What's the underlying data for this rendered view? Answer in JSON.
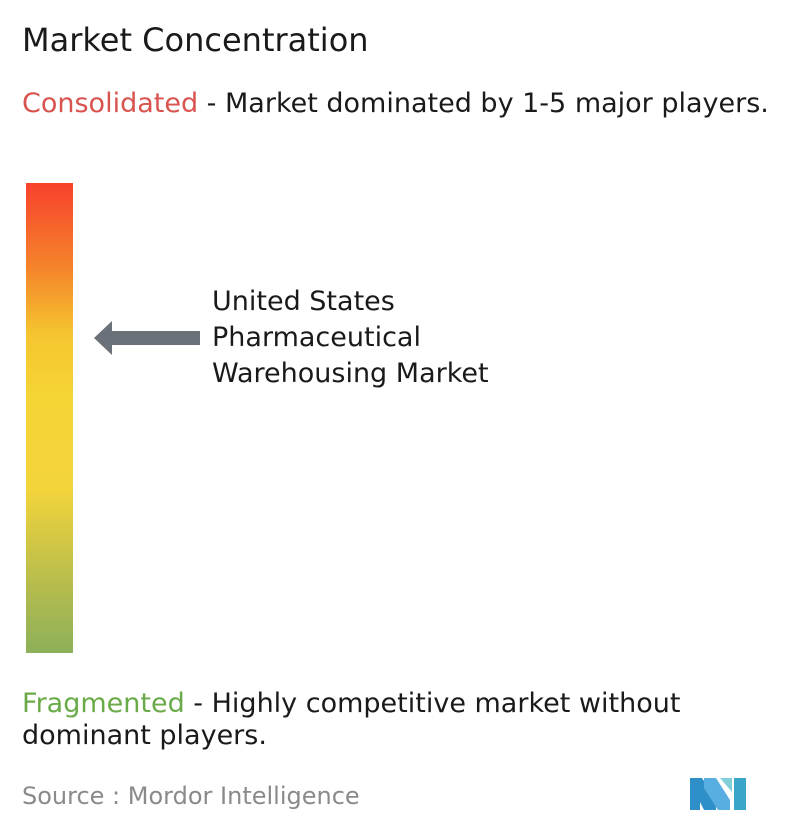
{
  "title": "Market Concentration",
  "top": {
    "keyword": "Consolidated",
    "description": " - Market dominated by 1-5 major players."
  },
  "bottom": {
    "keyword": "Fragmented",
    "description": " - Highly competitive market without dominant players."
  },
  "market_label": [
    "United States",
    "Pharmaceutical",
    "Warehousing Market"
  ],
  "source": "Source :  Mordor Intelligence",
  "colors": {
    "consolidated": "#d9534f",
    "fragmented": "#6aaa48",
    "arrow": "#6b7178",
    "logo": "#58aee0"
  },
  "chart_data": {
    "type": "gauge",
    "scale": [
      "Consolidated",
      "Fragmented"
    ],
    "market": "United States Pharmaceutical Warehousing Market",
    "concentration_level": 0.67
  }
}
